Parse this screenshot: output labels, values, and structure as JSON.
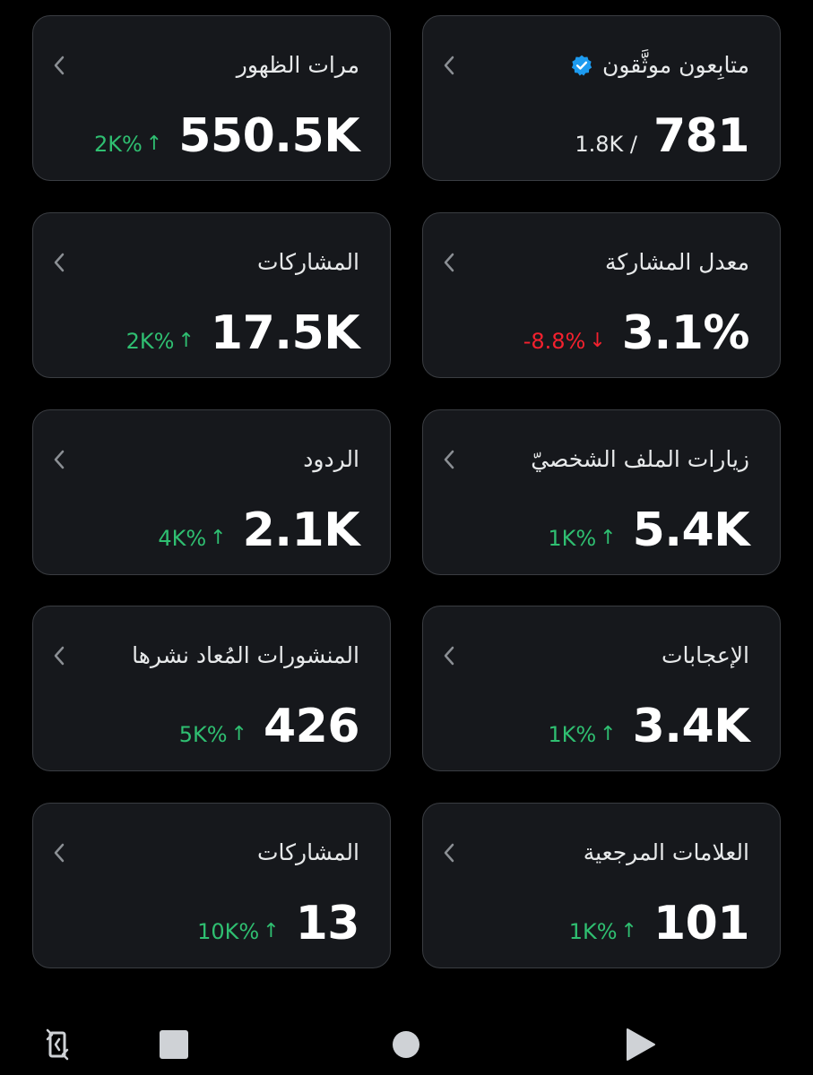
{
  "cards": [
    {
      "id": "verified-followers",
      "title": "متابِعون موثَّقون",
      "value": "781",
      "secondary": "1.8K  /",
      "verified": true
    },
    {
      "id": "impressions",
      "title": "مرات الظهور",
      "value": "550.5K",
      "change": "2K%",
      "direction": "up"
    },
    {
      "id": "engagement-rate",
      "title": "معدل المشاركة",
      "value": "3.1%",
      "change": "-8.8%",
      "direction": "down"
    },
    {
      "id": "engagements",
      "title": "المشاركات",
      "value": "17.5K",
      "change": "2K%",
      "direction": "up"
    },
    {
      "id": "profile-visits",
      "title": "زيارات الملف الشخصيّ",
      "value": "5.4K",
      "change": "1K%",
      "direction": "up"
    },
    {
      "id": "replies",
      "title": "الردود",
      "value": "2.1K",
      "change": "4K%",
      "direction": "up"
    },
    {
      "id": "likes",
      "title": "الإعجابات",
      "value": "3.4K",
      "change": "1K%",
      "direction": "up"
    },
    {
      "id": "reposts",
      "title": "المنشورات المُعاد نشرها",
      "value": "426",
      "change": "5K%",
      "direction": "up"
    },
    {
      "id": "bookmarks",
      "title": "العلامات المرجعية",
      "value": "101",
      "change": "1K%",
      "direction": "up"
    },
    {
      "id": "shares",
      "title": "المشاركات",
      "value": "13",
      "change": "10K%",
      "direction": "up"
    }
  ],
  "arrows": {
    "up": "↑",
    "down": "↓"
  },
  "colors": {
    "up": "#2fbf71",
    "down": "#f4212e",
    "verified": "#1d9bf0",
    "card_bg": "#16181c"
  },
  "navbar": {
    "icons": [
      "rotate-icon",
      "square-icon",
      "circle-icon",
      "play-icon"
    ]
  }
}
